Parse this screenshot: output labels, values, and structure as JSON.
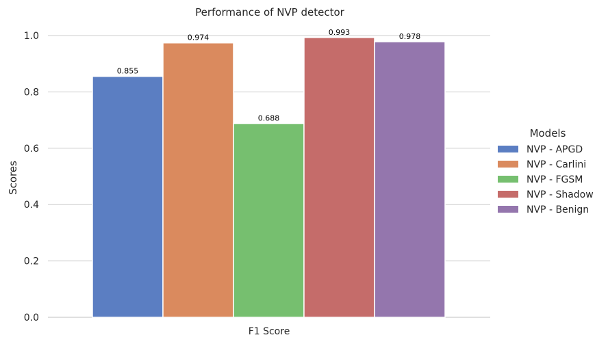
{
  "chart_data": {
    "type": "bar",
    "title": "Performance of NVP detector",
    "xlabel": "F1 Score",
    "ylabel": "Scores",
    "categories": [
      "F1 Score"
    ],
    "ylim": [
      0,
      1.0
    ],
    "yticks": [
      "0.0",
      "0.2",
      "0.4",
      "0.6",
      "0.8",
      "1.0"
    ],
    "grid": true,
    "legend": {
      "title": "Models",
      "placement": "right"
    },
    "series": [
      {
        "name": "NVP - APGD",
        "values": [
          0.855
        ],
        "label": "0.855",
        "color": "#5b7ec2"
      },
      {
        "name": "NVP - Carlini",
        "values": [
          0.974
        ],
        "label": "0.974",
        "color": "#da8a5e"
      },
      {
        "name": "NVP - FGSM",
        "values": [
          0.688
        ],
        "label": "0.688",
        "color": "#76bf6f"
      },
      {
        "name": "NVP - Shadow",
        "values": [
          0.993
        ],
        "label": "0.993",
        "color": "#c56c6a"
      },
      {
        "name": "NVP - Benign",
        "values": [
          0.978
        ],
        "label": "0.978",
        "color": "#9476ad"
      }
    ]
  }
}
